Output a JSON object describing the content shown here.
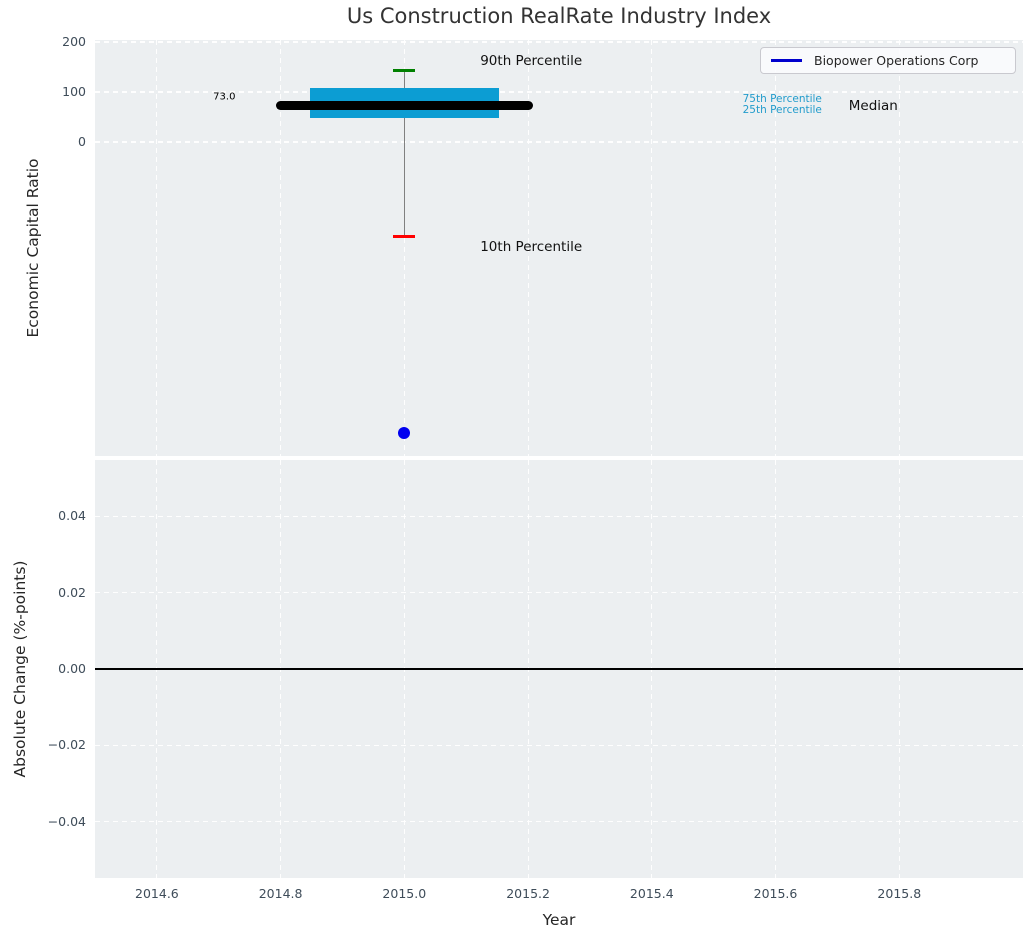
{
  "title": "Us Construction RealRate Industry Index",
  "figure": {
    "background": "#ffffff",
    "axes_background": "#eceff1",
    "grid_color": "#ffffff",
    "tick_color": "#3e4c59",
    "label_color": "#262626"
  },
  "legend": {
    "label": "Biopower Operations Corp",
    "line_color": "#0000cd",
    "position": "upper right"
  },
  "chart_data": [
    {
      "type": "boxplot",
      "title": "Us Construction RealRate Industry Index",
      "xlabel": "",
      "ylabel": "Economic Capital Ratio",
      "xlim": [
        2014.5,
        2016.0
      ],
      "ylim": [
        -628,
        204
      ],
      "grid": true,
      "legend_position": "upper right",
      "xticks": [
        {
          "v": 2014.6,
          "label": ""
        },
        {
          "v": 2014.8,
          "label": ""
        },
        {
          "v": 2015.0,
          "label": ""
        },
        {
          "v": 2015.2,
          "label": ""
        },
        {
          "v": 2015.4,
          "label": ""
        },
        {
          "v": 2015.6,
          "label": ""
        },
        {
          "v": 2015.8,
          "label": ""
        }
      ],
      "yticks": [
        {
          "v": 200,
          "label": "200"
        },
        {
          "v": 100,
          "label": "100"
        },
        {
          "v": 0,
          "label": "0"
        }
      ],
      "box": {
        "x": 2015.0,
        "median": 73.0,
        "p25": 48,
        "p75": 108,
        "p10": -188,
        "p90": 144,
        "box_width_years": 0.305,
        "median_width_years": 0.415,
        "cap_width_years": 0.036,
        "colors": {
          "box": "#0c9dd3",
          "median": "#000000",
          "p90_cap": "#008000",
          "p10_cap": "#ff0000",
          "whisker": "#808080"
        }
      },
      "points": [
        {
          "x": 2015.0,
          "y": -582,
          "color": "#0000f0",
          "series": "Biopower Operations Corp"
        }
      ],
      "annotations": [
        {
          "text": "73.0",
          "x": 2014.709,
          "y": 90,
          "ha": "center",
          "color": "#000000",
          "size": 10
        },
        {
          "text": "90th Percentile",
          "x": 2015.205,
          "y": 162,
          "ha": "center",
          "color": "#111111",
          "size": 13.5
        },
        {
          "text": "10th Percentile",
          "x": 2015.205,
          "y": -210,
          "ha": "center",
          "color": "#111111",
          "size": 13.5
        },
        {
          "text": "75th Percentile",
          "x": 2015.675,
          "y": 86,
          "ha": "right",
          "color": "#229ccc",
          "size": 10.5
        },
        {
          "text": "25th Percentile",
          "x": 2015.675,
          "y": 64,
          "ha": "right",
          "color": "#229ccc",
          "size": 10.5
        },
        {
          "text": "Median",
          "x": 2015.758,
          "y": 72,
          "ha": "center",
          "color": "#111111",
          "size": 13.5
        }
      ]
    },
    {
      "type": "line",
      "xlabel": "Year",
      "ylabel": "Absolute Change (%-points)",
      "xlim": [
        2014.5,
        2016.0
      ],
      "ylim": [
        -0.0548,
        0.0548
      ],
      "grid": true,
      "series": [],
      "zero_line": {
        "y": 0,
        "color": "#000000"
      },
      "xticks": [
        {
          "v": 2014.6,
          "label": "2014.6"
        },
        {
          "v": 2014.8,
          "label": "2014.8"
        },
        {
          "v": 2015.0,
          "label": "2015.0"
        },
        {
          "v": 2015.2,
          "label": "2015.2"
        },
        {
          "v": 2015.4,
          "label": "2015.4"
        },
        {
          "v": 2015.6,
          "label": "2015.6"
        },
        {
          "v": 2015.8,
          "label": "2015.8"
        }
      ],
      "yticks": [
        {
          "v": 0.04,
          "label": "0.04"
        },
        {
          "v": 0.02,
          "label": "0.02"
        },
        {
          "v": 0.0,
          "label": "0.00"
        },
        {
          "v": -0.02,
          "label": "−0.02"
        },
        {
          "v": -0.04,
          "label": "−0.04"
        }
      ]
    }
  ]
}
